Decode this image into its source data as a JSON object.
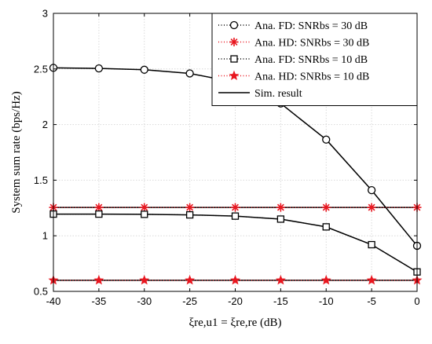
{
  "chart_data": {
    "type": "line",
    "x": [
      -40,
      -35,
      -30,
      -25,
      -20,
      -15,
      -10,
      -5,
      0
    ],
    "xlabel": "ξre,u1 = ξre,re (dB)",
    "ylabel": "System sum rate (bps/Hz)",
    "xlim": [
      -40,
      0
    ],
    "ylim": [
      0.5,
      3
    ],
    "xticks": [
      -40,
      -35,
      -30,
      -25,
      -20,
      -15,
      -10,
      -5,
      0
    ],
    "yticks": [
      0.5,
      1,
      1.5,
      2,
      2.5,
      3
    ],
    "xtick_labels": [
      "-40",
      "-35",
      "-30",
      "-25",
      "-20",
      "-15",
      "-10",
      "-5",
      "0"
    ],
    "ytick_labels": [
      "0.5",
      "1",
      "1.5",
      "2",
      "2.5",
      "3"
    ],
    "grid": true,
    "legend_position": "top-right",
    "series": [
      {
        "name": "Ana. FD: SNRbs = 30 dB",
        "marker": "circle",
        "color": "#000000",
        "values": [
          2.51,
          2.505,
          2.493,
          2.46,
          2.38,
          2.19,
          1.865,
          1.41,
          0.91
        ]
      },
      {
        "name": "Ana. HD: SNRbs = 30 dB",
        "marker": "asterisk",
        "color": "#e8161f",
        "values": [
          1.255,
          1.255,
          1.255,
          1.255,
          1.255,
          1.255,
          1.255,
          1.255,
          1.255
        ]
      },
      {
        "name": "Ana. FD: SNRbs = 10 dB",
        "marker": "square",
        "color": "#000000",
        "values": [
          1.195,
          1.195,
          1.193,
          1.188,
          1.177,
          1.15,
          1.08,
          0.92,
          0.675
        ]
      },
      {
        "name": "Ana. HD: SNRbs = 10 dB",
        "marker": "star",
        "color": "#e8161f",
        "values": [
          0.6,
          0.6,
          0.6,
          0.6,
          0.6,
          0.6,
          0.6,
          0.6,
          0.6
        ]
      },
      {
        "name": "Sim. result",
        "marker": "none",
        "color": "#000000"
      }
    ]
  }
}
